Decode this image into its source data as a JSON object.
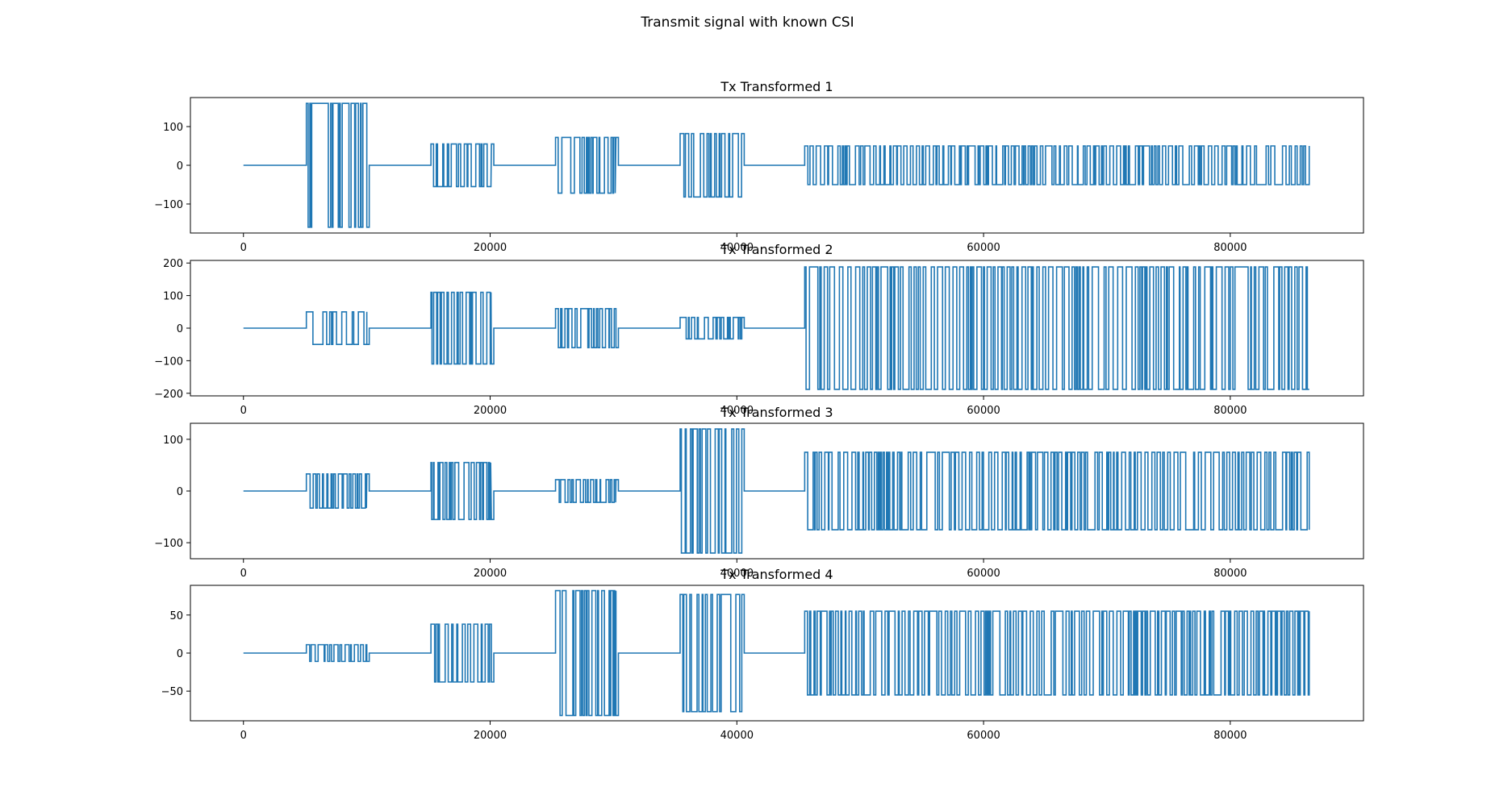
{
  "suptitle": "Transmit signal with known CSI",
  "style": {
    "line_color": "#1f77b4",
    "axis_color": "#000000",
    "background": "#ffffff"
  },
  "chart_data": [
    {
      "type": "line",
      "title": "Tx Transformed 1",
      "xlim": [
        -4300,
        90800
      ],
      "ylim": [
        -175,
        175
      ],
      "xticks": [
        0,
        20000,
        40000,
        60000,
        80000
      ],
      "xtick_labels": [
        "0",
        "20000",
        "40000",
        "60000",
        "80000"
      ],
      "yticks": [
        100,
        0,
        -100
      ],
      "ytick_labels": [
        "100",
        "0",
        "−100"
      ],
      "bursts": [
        {
          "start": 5100,
          "end": 10000,
          "amp": 160,
          "neg": -160,
          "tail": -160
        },
        {
          "start": 15200,
          "end": 20100,
          "amp": 55,
          "neg": -55,
          "tail": 55
        },
        {
          "start": 25300,
          "end": 30200,
          "amp": 72,
          "neg": -72,
          "tail": 72
        },
        {
          "start": 35400,
          "end": 40400,
          "amp": 82,
          "neg": -82,
          "tail": 82
        },
        {
          "start": 45500,
          "end": 86400,
          "amp": 50,
          "neg": -50,
          "tail": 50
        }
      ]
    },
    {
      "type": "line",
      "title": "Tx Transformed 2",
      "xlim": [
        -4300,
        90800
      ],
      "ylim": [
        -208,
        208
      ],
      "xticks": [
        0,
        20000,
        40000,
        60000,
        80000
      ],
      "xtick_labels": [
        "0",
        "20000",
        "40000",
        "60000",
        "80000"
      ],
      "yticks": [
        200,
        100,
        0,
        -100,
        -200
      ],
      "ytick_labels": [
        "200",
        "100",
        "0",
        "−100",
        "−200"
      ],
      "bursts": [
        {
          "start": 5100,
          "end": 10000,
          "amp": 50,
          "neg": -50,
          "tail": -50
        },
        {
          "start": 15200,
          "end": 20100,
          "amp": 110,
          "neg": -110,
          "tail": -110
        },
        {
          "start": 25300,
          "end": 30200,
          "amp": 60,
          "neg": -60,
          "tail": -60
        },
        {
          "start": 35400,
          "end": 40400,
          "amp": 33,
          "neg": -33,
          "tail": 33
        },
        {
          "start": 45500,
          "end": 86400,
          "amp": 188,
          "neg": -188,
          "tail": -188
        }
      ]
    },
    {
      "type": "line",
      "title": "Tx Transformed 3",
      "xlim": [
        -4300,
        90800
      ],
      "ylim": [
        -131,
        131
      ],
      "xticks": [
        0,
        20000,
        40000,
        60000,
        80000
      ],
      "xtick_labels": [
        "0",
        "20000",
        "40000",
        "60000",
        "80000"
      ],
      "yticks": [
        100,
        0,
        -100
      ],
      "ytick_labels": [
        "100",
        "0",
        "−100"
      ],
      "bursts": [
        {
          "start": 5100,
          "end": 10000,
          "amp": 33,
          "neg": -33,
          "tail": 33
        },
        {
          "start": 15200,
          "end": 20100,
          "amp": 55,
          "neg": -55,
          "tail": -55
        },
        {
          "start": 25300,
          "end": 30200,
          "amp": 22,
          "neg": -22,
          "tail": 22
        },
        {
          "start": 35400,
          "end": 40400,
          "amp": 120,
          "neg": -120,
          "tail": 120
        },
        {
          "start": 45500,
          "end": 86400,
          "amp": 75,
          "neg": -75,
          "tail": 75
        }
      ]
    },
    {
      "type": "line",
      "title": "Tx Transformed 4",
      "xlim": [
        -4300,
        90800
      ],
      "ylim": [
        -89,
        89
      ],
      "xticks": [
        0,
        20000,
        40000,
        60000,
        80000
      ],
      "xtick_labels": [
        "0",
        "20000",
        "40000",
        "60000",
        "80000"
      ],
      "yticks": [
        50,
        0,
        -50
      ],
      "ytick_labels": [
        "50",
        "0",
        "−50"
      ],
      "bursts": [
        {
          "start": 5100,
          "end": 10000,
          "amp": 11,
          "neg": -11,
          "tail": -11
        },
        {
          "start": 15200,
          "end": 20100,
          "amp": 38,
          "neg": -38,
          "tail": -38
        },
        {
          "start": 25300,
          "end": 30200,
          "amp": 82,
          "neg": -82,
          "tail": -82
        },
        {
          "start": 35400,
          "end": 40400,
          "amp": 77,
          "neg": -77,
          "tail": 77
        },
        {
          "start": 45500,
          "end": 86400,
          "amp": 55,
          "neg": -55,
          "tail": -55
        }
      ]
    }
  ]
}
